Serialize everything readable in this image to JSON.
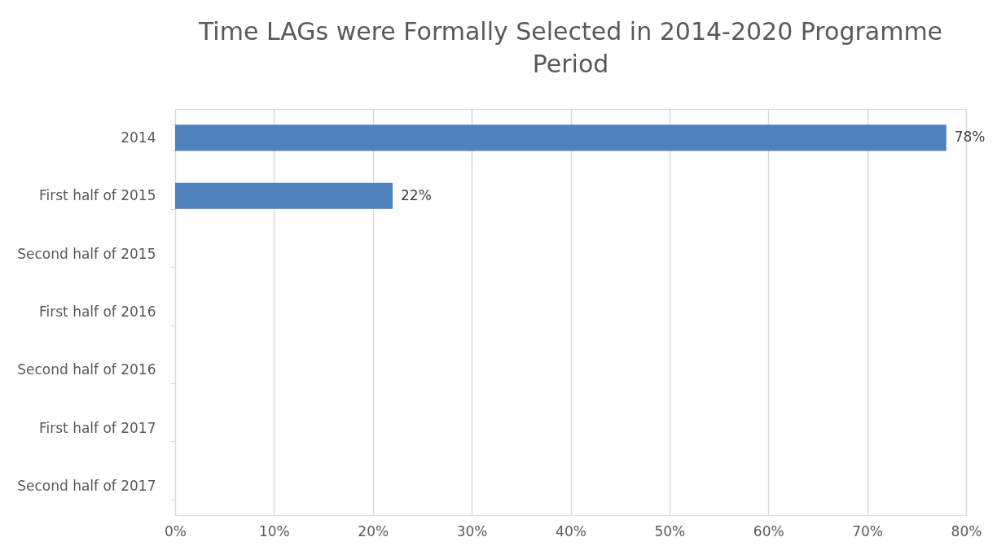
{
  "chart_data": {
    "type": "bar",
    "orientation": "horizontal",
    "title": [
      "Time LAGs were Formally Selected in 2014-2020 Programme",
      "Period"
    ],
    "categories": [
      "2014",
      "First half of 2015",
      "Second half of 2015",
      "First half of 2016",
      "Second half of 2016",
      "First half of 2017",
      "Second half of 2017"
    ],
    "values": [
      78,
      22,
      null,
      null,
      null,
      null,
      null
    ],
    "value_labels": [
      "78%",
      "22%",
      null,
      null,
      null,
      null,
      null
    ],
    "color": "#4f81bd",
    "xlim": [
      0,
      80
    ],
    "xticks": [
      {
        "value": 0,
        "label": "0%"
      },
      {
        "value": 10,
        "label": "10%"
      },
      {
        "value": 20,
        "label": "20%"
      },
      {
        "value": 30,
        "label": "30%"
      },
      {
        "value": 40,
        "label": "40%"
      },
      {
        "value": 50,
        "label": "50%"
      },
      {
        "value": 60,
        "label": "60%"
      },
      {
        "value": 70,
        "label": "70%"
      },
      {
        "value": 80,
        "label": "80%"
      }
    ],
    "grid": "x"
  }
}
